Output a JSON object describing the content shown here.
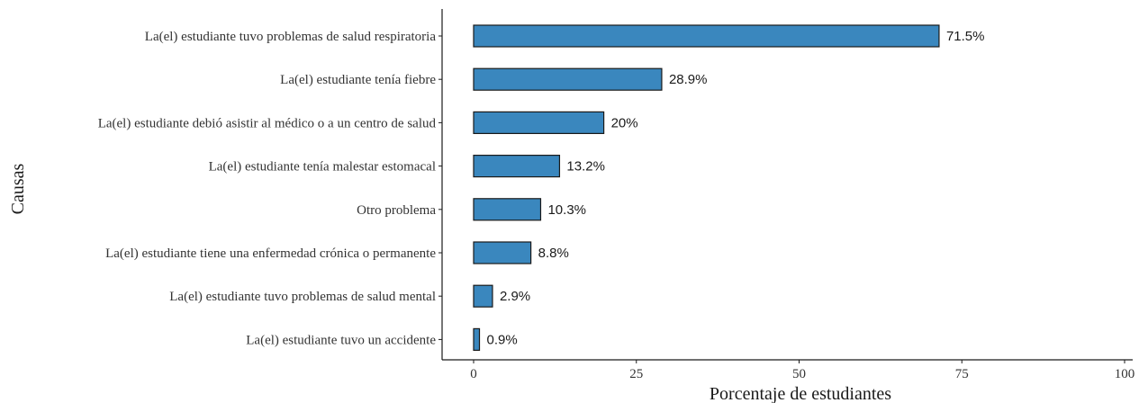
{
  "chart_data": {
    "type": "bar",
    "orientation": "horizontal",
    "categories": [
      "La(el) estudiante tuvo problemas de salud respiratoria",
      "La(el) estudiante tenía fiebre",
      "La(el) estudiante debió asistir al médico o a un centro de salud",
      "La(el) estudiante tenía malestar estomacal",
      "Otro problema",
      "La(el) estudiante tiene una enfermedad crónica o permanente",
      "La(el) estudiante tuvo problemas de salud mental",
      "La(el) estudiante tuvo un accidente"
    ],
    "values": [
      71.5,
      28.9,
      20,
      13.2,
      10.3,
      8.8,
      2.9,
      0.9
    ],
    "value_labels": [
      "71.5%",
      "28.9%",
      "20%",
      "13.2%",
      "10.3%",
      "8.8%",
      "2.9%",
      "0.9%"
    ],
    "xlabel": "Porcentaje de estudiantes",
    "ylabel": "Causas",
    "xlim": [
      0,
      100
    ],
    "xticks": [
      0,
      25,
      50,
      75,
      100
    ],
    "xtick_labels": [
      "0",
      "25",
      "50",
      "75",
      "100"
    ],
    "grid": false,
    "bar_color": "#3A87BE",
    "bar_edge_color": "#1a1a1a"
  }
}
